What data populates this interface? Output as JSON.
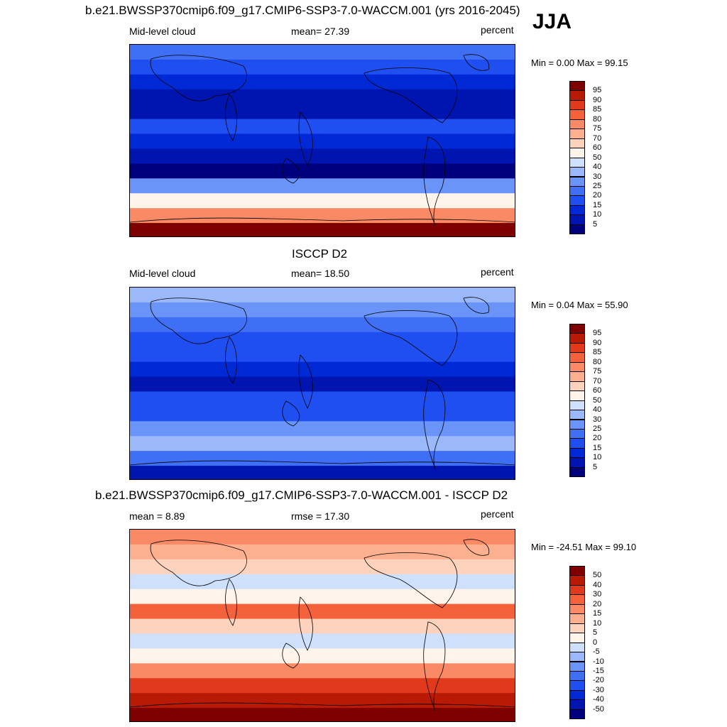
{
  "season": "JJA",
  "panels": [
    {
      "title": "b.e21.BWSSP370cmip6.f09_g17.CMIP6-SSP3-7.0-WACCM.001 (yrs 2016-2045)",
      "left_label": "Mid-level cloud",
      "center_label": "mean=  27.39",
      "units": "percent",
      "minmax": "Min =   0.00 Max =  99.15",
      "colorbar_ticks": [
        "95",
        "90",
        "85",
        "80",
        "75",
        "70",
        "60",
        "50",
        "40",
        "30",
        "25",
        "20",
        "15",
        "10",
        "5"
      ]
    },
    {
      "title": "ISCCP D2",
      "left_label": "Mid-level cloud",
      "center_label": "mean=  18.50",
      "units": "percent",
      "minmax": "Min =   0.04 Max =  55.90",
      "colorbar_ticks": [
        "95",
        "90",
        "85",
        "80",
        "75",
        "70",
        "60",
        "50",
        "40",
        "30",
        "25",
        "20",
        "15",
        "10",
        "5"
      ]
    },
    {
      "title": "b.e21.BWSSP370cmip6.f09_g17.CMIP6-SSP3-7.0-WACCM.001 - ISCCP D2",
      "left_label": "mean =   8.89",
      "center_label": "rmse =  17.30",
      "units": "percent",
      "minmax": "Min = -24.51 Max =  99.10",
      "colorbar_ticks": [
        "50",
        "40",
        "30",
        "20",
        "15",
        "10",
        "5",
        "0",
        "-5",
        "-10",
        "-15",
        "-20",
        "-30",
        "-40",
        "-50"
      ]
    }
  ],
  "chart_data": [
    {
      "type": "heatmap",
      "title": "b.e21.BWSSP370cmip6.f09_g17.CMIP6-SSP3-7.0-WACCM.001 (yrs 2016-2045)",
      "variable": "Mid-level cloud",
      "units": "percent",
      "mean": 27.39,
      "min": 0.0,
      "max": 99.15,
      "levels": [
        5,
        10,
        15,
        20,
        25,
        30,
        40,
        50,
        60,
        70,
        75,
        80,
        85,
        90,
        95
      ],
      "colors": [
        "#00007f",
        "#0015b0",
        "#0029d6",
        "#1f4ff0",
        "#3f6ff5",
        "#6a94f8",
        "#9bb8fb",
        "#cfe0fd",
        "#fff4ea",
        "#fdd3bd",
        "#fcb08f",
        "#f98a65",
        "#f4623c",
        "#e0391b",
        "#b81a05",
        "#7f0000"
      ],
      "latitude_band_values": [
        20,
        15,
        10,
        6,
        5,
        18,
        12,
        5,
        4,
        25,
        55,
        75,
        95
      ]
    },
    {
      "type": "heatmap",
      "title": "ISCCP D2",
      "variable": "Mid-level cloud",
      "units": "percent",
      "mean": 18.5,
      "min": 0.04,
      "max": 55.9,
      "levels": [
        5,
        10,
        15,
        20,
        25,
        30,
        40,
        50,
        60,
        70,
        75,
        80,
        85,
        90,
        95
      ],
      "colors": [
        "#00007f",
        "#0015b0",
        "#0029d6",
        "#1f4ff0",
        "#3f6ff5",
        "#6a94f8",
        "#9bb8fb",
        "#cfe0fd",
        "#fff4ea",
        "#fdd3bd",
        "#fcb08f",
        "#f98a65",
        "#f4623c",
        "#e0391b",
        "#b81a05",
        "#7f0000"
      ],
      "latitude_band_values": [
        30,
        25,
        20,
        18,
        15,
        12,
        8,
        15,
        18,
        25,
        30,
        20,
        8
      ]
    },
    {
      "type": "heatmap",
      "title": "b.e21.BWSSP370cmip6.f09_g17.CMIP6-SSP3-7.0-WACCM.001 - ISCCP D2",
      "variable": "difference",
      "units": "percent",
      "mean": 8.89,
      "rmse": 17.3,
      "min": -24.51,
      "max": 99.1,
      "levels": [
        -50,
        -40,
        -30,
        -20,
        -15,
        -10,
        -5,
        0,
        5,
        10,
        15,
        20,
        30,
        40,
        50
      ],
      "colors": [
        "#00007f",
        "#0015b0",
        "#0029d6",
        "#1f4ff0",
        "#3f6ff5",
        "#6a94f8",
        "#9bb8fb",
        "#cfe0fd",
        "#fff4ea",
        "#fdd3bd",
        "#fcb08f",
        "#f98a65",
        "#f4623c",
        "#e0391b",
        "#b81a05",
        "#7f0000"
      ],
      "latitude_band_values": [
        18,
        12,
        6,
        -3,
        4,
        22,
        8,
        -2,
        3,
        15,
        30,
        45,
        55
      ]
    }
  ]
}
